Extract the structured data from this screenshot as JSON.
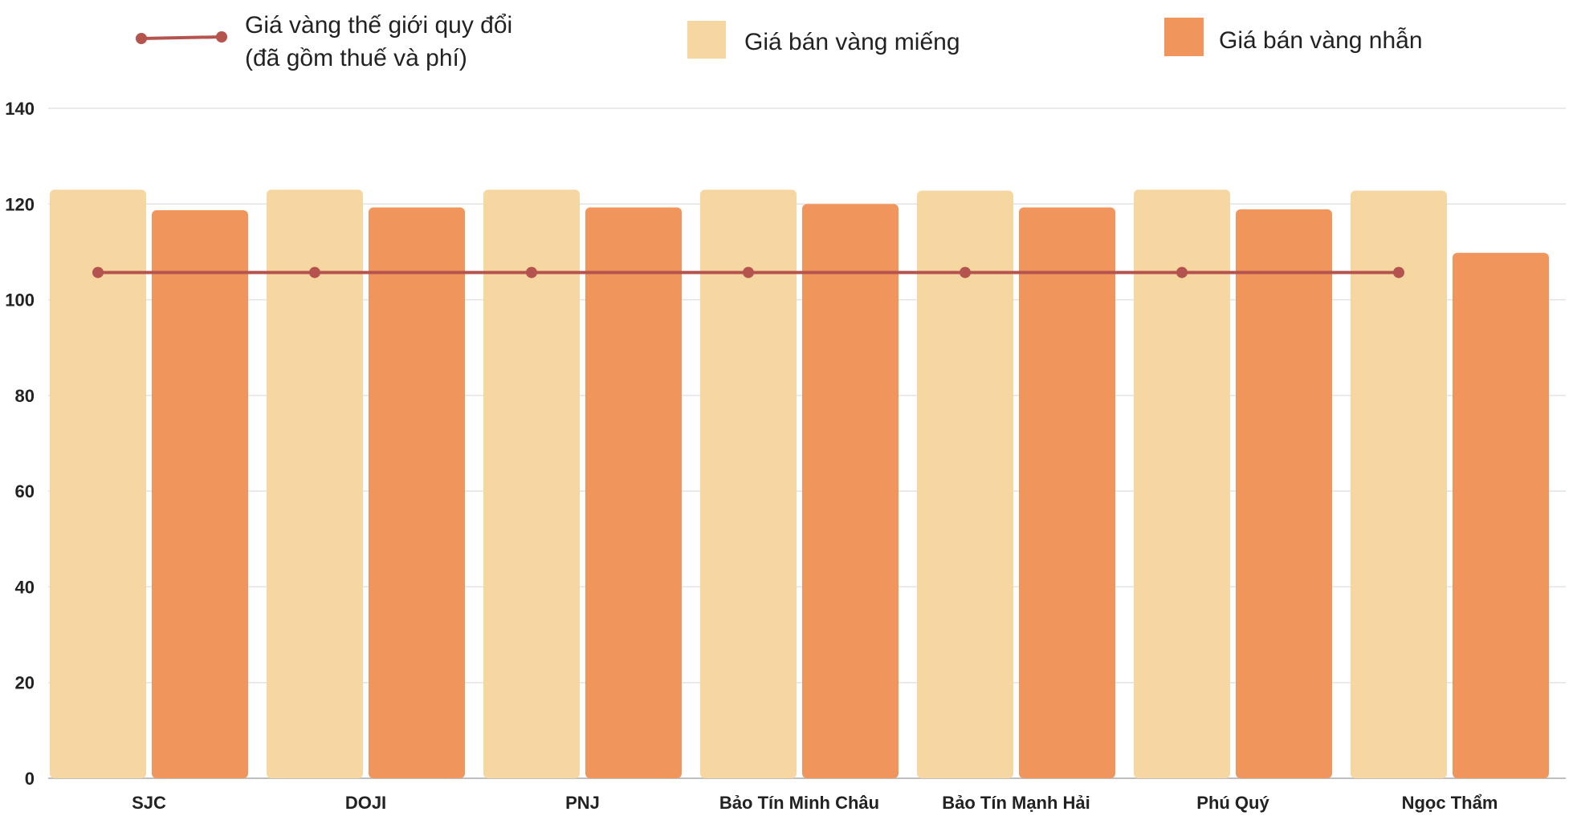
{
  "chart_data": {
    "type": "bar",
    "categories": [
      "SJC",
      "DOJI",
      "PNJ",
      "Bảo Tín Minh Châu",
      "Bảo Tín Mạnh Hải",
      "Phú Quý",
      "Ngọc Thẩm"
    ],
    "series": [
      {
        "name": "Giá bán vàng miếng",
        "kind": "bar",
        "color": "#F7D7A1",
        "values": [
          123.0,
          123.0,
          123.0,
          123.0,
          122.8,
          123.0,
          122.8
        ]
      },
      {
        "name": "Giá bán vàng nhẫn",
        "kind": "bar",
        "color": "#F0965C",
        "values": [
          118.7,
          119.3,
          119.3,
          120.0,
          119.3,
          118.9,
          109.8
        ]
      },
      {
        "name": "Giá vàng thế giới quy đổi",
        "name_line2": "(đã gồm thuế và phí)",
        "kind": "line",
        "color": "#B5534E",
        "values": [
          105.7,
          105.7,
          105.7,
          105.7,
          105.7,
          105.7,
          105.7
        ]
      }
    ],
    "yticks": [
      0,
      20,
      40,
      60,
      80,
      100,
      120,
      140
    ],
    "ylim": [
      0,
      140
    ],
    "grid": true,
    "legend_position": "top"
  }
}
